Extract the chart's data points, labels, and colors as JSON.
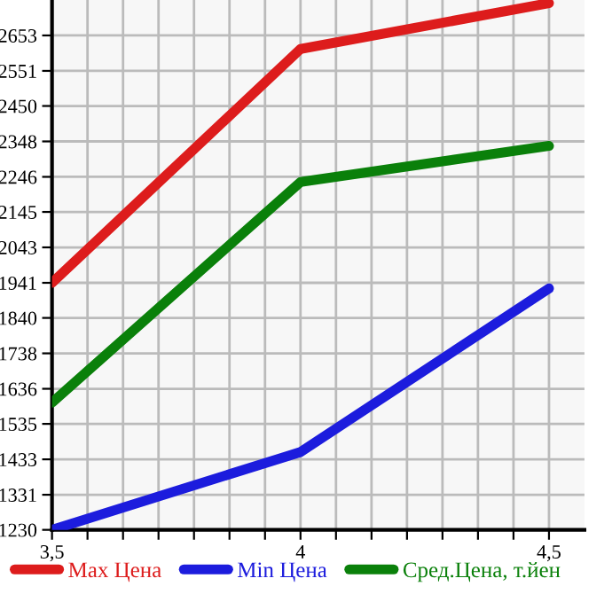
{
  "chart_data": {
    "type": "line",
    "x": [
      3.5,
      4,
      4.5
    ],
    "series": [
      {
        "name": "Max Цена",
        "color": "#dd1c1c",
        "values": [
          1941,
          2614,
          2746
        ]
      },
      {
        "name": "Min Цена",
        "color": "#1c1cdd",
        "values": [
          1230,
          1454,
          1925
        ]
      },
      {
        "name": "Сред.Цена, т.йен",
        "color": "#0a800a",
        "values": [
          1596,
          2231,
          2335
        ]
      }
    ],
    "xlim": [
      3.5,
      4.5714
    ],
    "xticks": [
      {
        "value": 3.5,
        "label": "3,5"
      },
      {
        "value": 3.5714,
        "label": null
      },
      {
        "value": 3.6429,
        "label": null
      },
      {
        "value": 3.7143,
        "label": null
      },
      {
        "value": 3.7857,
        "label": null
      },
      {
        "value": 3.8571,
        "label": null
      },
      {
        "value": 3.9286,
        "label": null
      },
      {
        "value": 4,
        "label": "4"
      },
      {
        "value": 4.0714,
        "label": null
      },
      {
        "value": 4.1429,
        "label": null
      },
      {
        "value": 4.2143,
        "label": null
      },
      {
        "value": 4.2857,
        "label": null
      },
      {
        "value": 4.3571,
        "label": null
      },
      {
        "value": 4.4286,
        "label": null
      },
      {
        "value": 4.5,
        "label": "4,5"
      }
    ],
    "ylim": [
      1230,
      2755
    ],
    "yticks": [
      1230,
      1331,
      1433,
      1535,
      1636,
      1738,
      1840,
      1941,
      2043,
      2145,
      2246,
      2348,
      2450,
      2551,
      2653
    ],
    "grid": true,
    "legend": "bottom",
    "marker": "none",
    "line_style": "solid"
  }
}
